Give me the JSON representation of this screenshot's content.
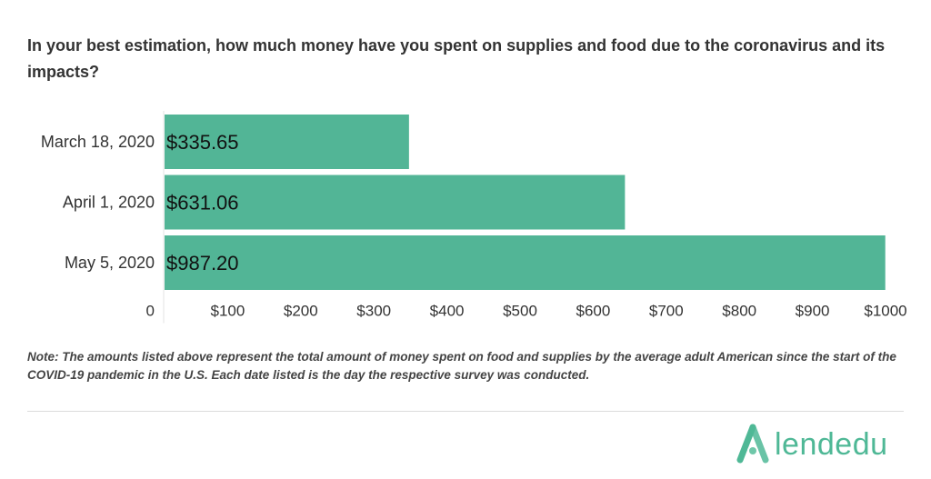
{
  "title": "In your best estimation, how much money have you spent on supplies and food due to the coronavirus and its impacts?",
  "note": "Note: The amounts listed above represent the total amount of money spent on food and supplies by the average adult American since the start of the COVID-19 pandemic in the U.S. Each date listed is the day the respective survey was conducted.",
  "brand": {
    "name": "lendedu",
    "color": "#4fb896"
  },
  "chart_data": {
    "type": "bar",
    "orientation": "horizontal",
    "categories": [
      "March 18, 2020",
      "April 1, 2020",
      "May 5, 2020"
    ],
    "values": [
      335.65,
      631.06,
      987.2
    ],
    "value_labels": [
      "$335.65",
      "$631.06",
      "$987.20"
    ],
    "xlim": [
      0,
      1000
    ],
    "x_ticks": [
      0,
      100,
      200,
      300,
      400,
      500,
      600,
      700,
      800,
      900,
      1000
    ],
    "x_tick_labels": [
      "0",
      "$100",
      "$200",
      "$300",
      "$400",
      "$500",
      "$600",
      "$700",
      "$800",
      "$900",
      "$1000"
    ],
    "bar_color": "#52b596",
    "grid": false
  }
}
